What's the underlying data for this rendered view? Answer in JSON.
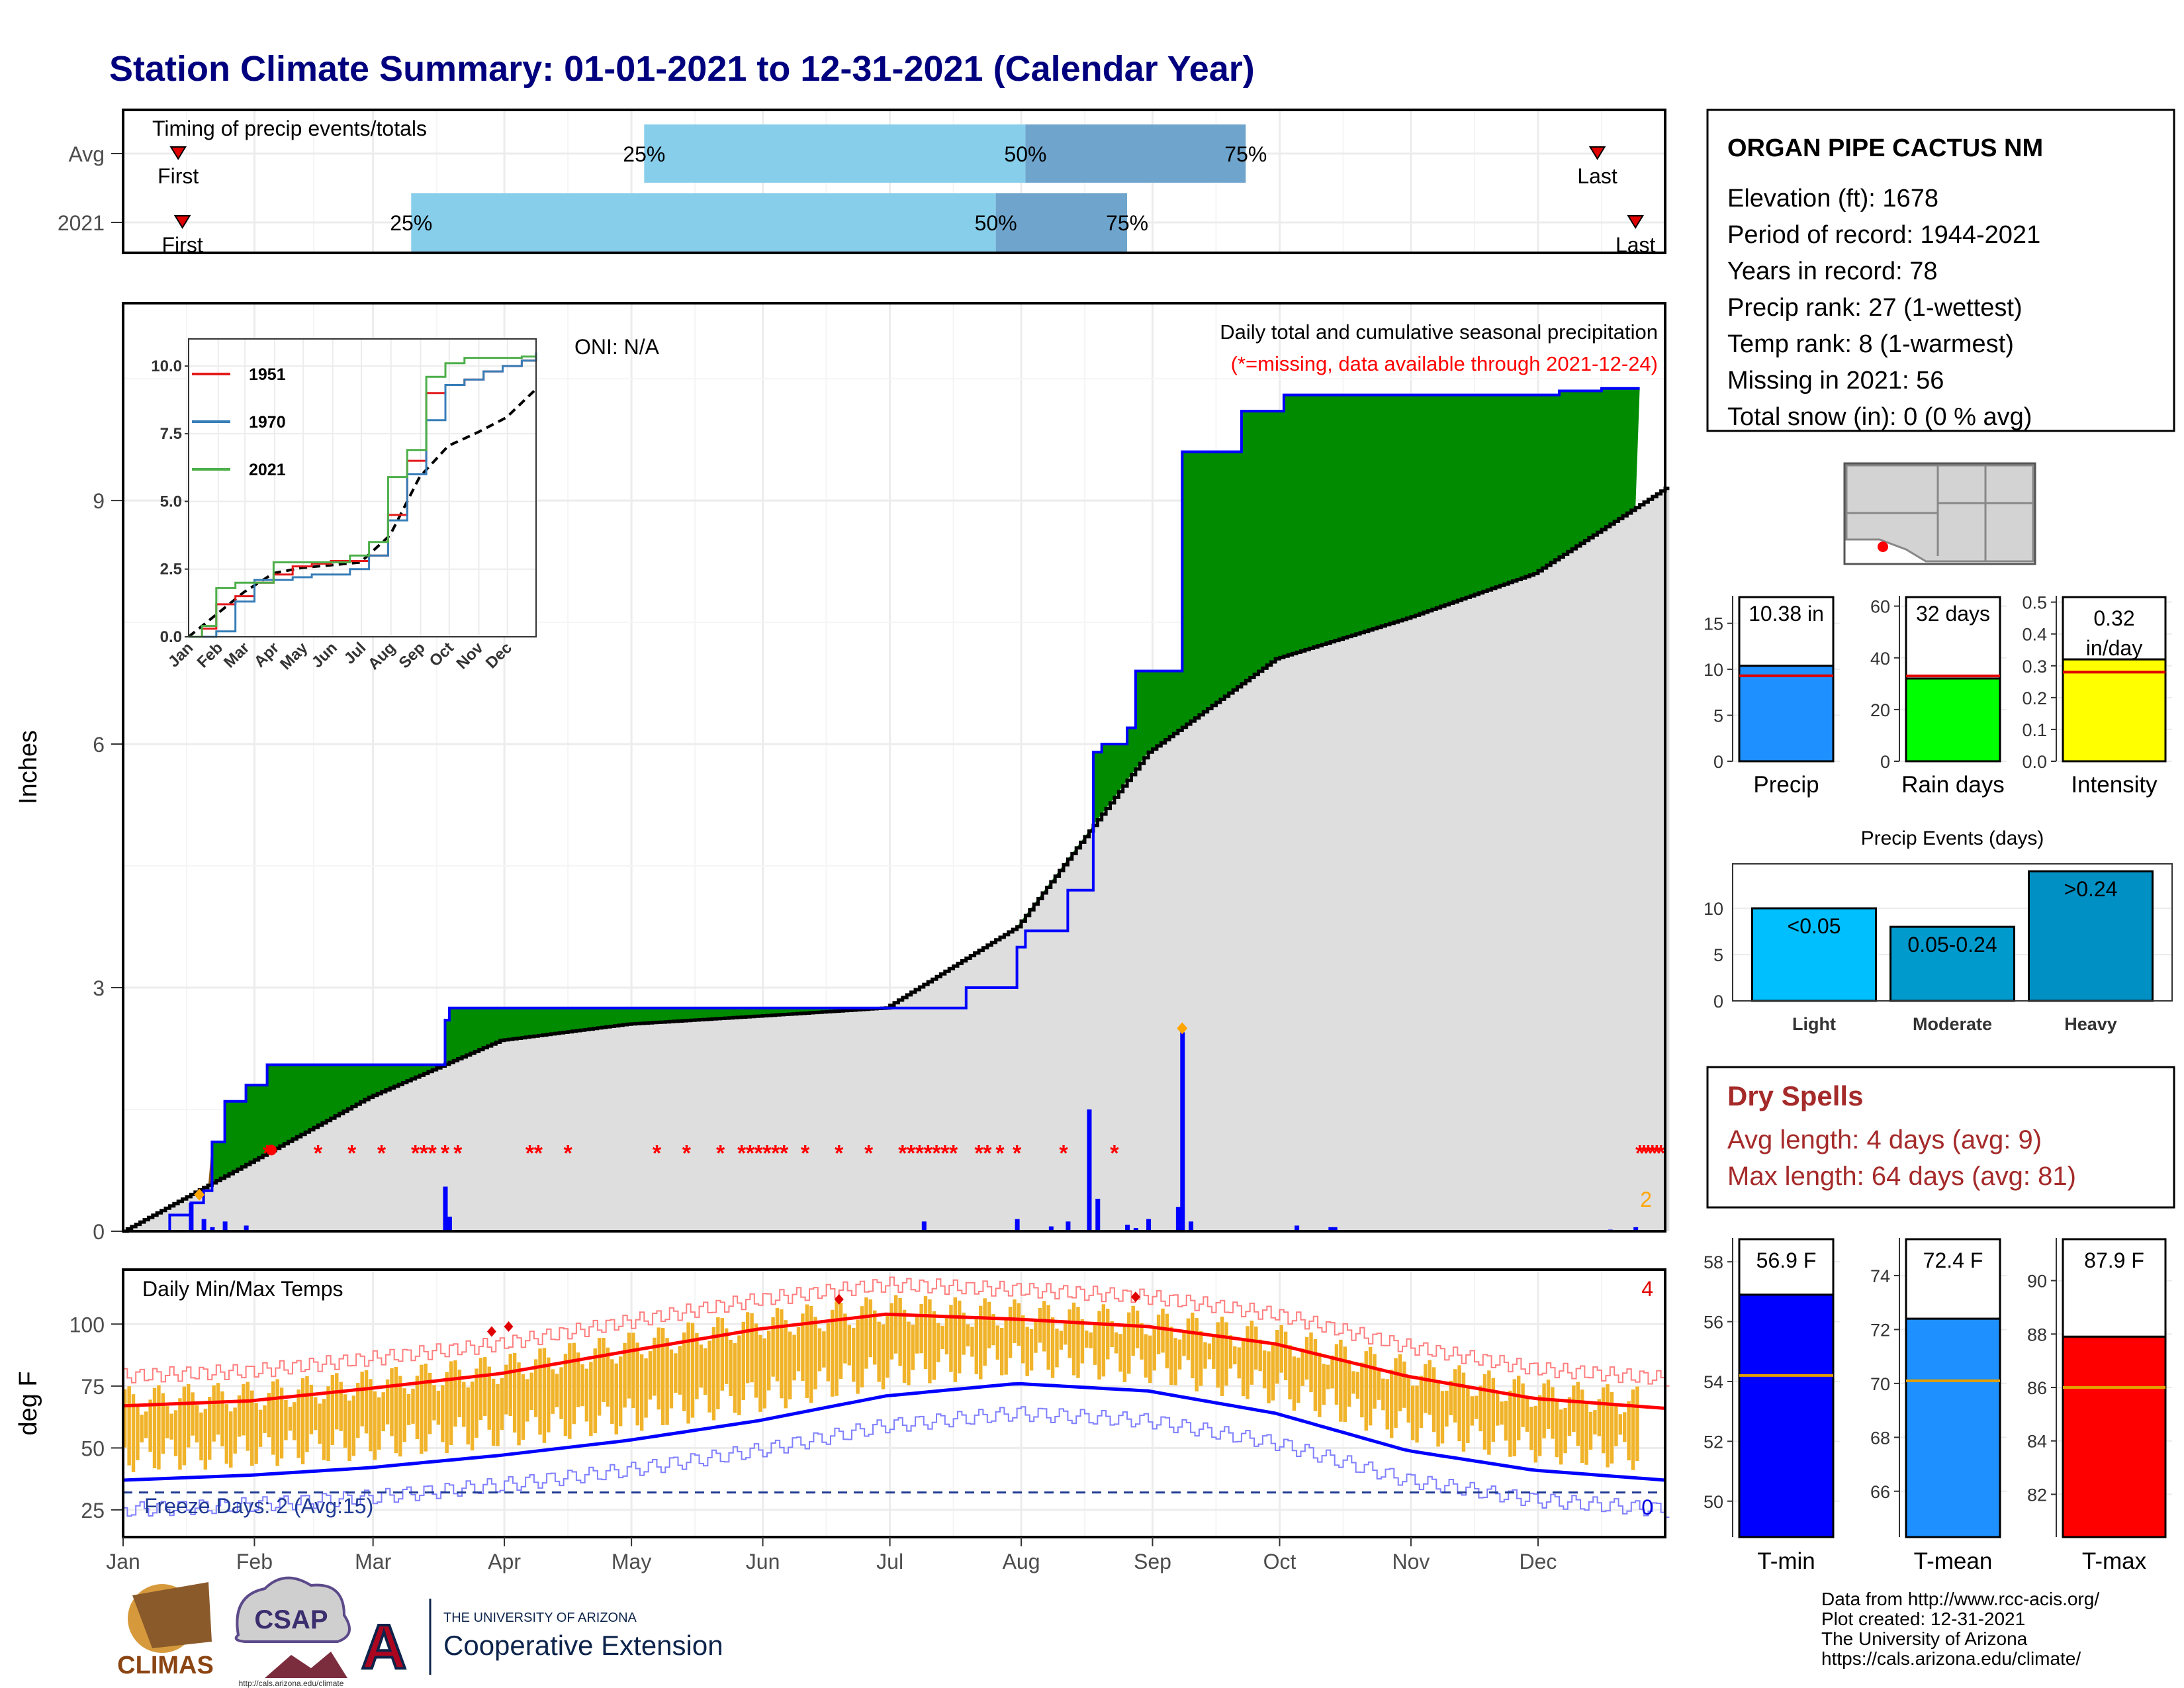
{
  "title": "Station Climate Summary: 01-01-2021 to 12-31-2021 (Calendar Year)",
  "colors": {
    "title": "#00007f",
    "precip_green": "#008b00",
    "normal_gray": "#dedede",
    "bar_blue": "#0000ff",
    "missing_red": "#ff0000",
    "timing_light": "#87ceeb",
    "timing_dark": "#6fa5cc",
    "temp_bar": "#f0b32a",
    "dry_red": "#a52a2a"
  },
  "months": [
    "Jan",
    "Feb",
    "Mar",
    "Apr",
    "May",
    "Jun",
    "Jul",
    "Aug",
    "Sep",
    "Oct",
    "Nov",
    "Dec"
  ],
  "timing": {
    "label": "Timing of precip events/totals",
    "rows": [
      {
        "name": "Avg",
        "first_label": "First",
        "last_label": "Last",
        "first_doy": 14,
        "last_doy": 349,
        "p25": 124,
        "p50": 214,
        "p75": 266,
        "p25_label": "25%",
        "p50_label": "50%",
        "p75_label": "75%"
      },
      {
        "name": "2021",
        "first_label": "First",
        "last_label": "Last",
        "first_doy": 15,
        "last_doy": 358,
        "p25": 69,
        "p50": 207,
        "p75": 238,
        "p25_label": "25%",
        "p50_label": "50%",
        "p75_label": "75%"
      }
    ]
  },
  "precip_panel": {
    "ylabel": "Inches",
    "heading": "Daily total and cumulative seasonal precipitation",
    "subheading": "(*=missing, data available through 2021-12-24)",
    "oni": "ONI: N/A",
    "missing_count_label": "2",
    "yticks": [
      "0",
      "3",
      "6",
      "9"
    ]
  },
  "inset": {
    "legend": [
      "1951",
      "1970",
      "2021"
    ],
    "legend_colors": [
      "#e41a1c",
      "#377eb8",
      "#4daf4a"
    ],
    "yticks": [
      "0.0",
      "2.5",
      "5.0",
      "7.5",
      "10.0"
    ],
    "xticks": [
      "Jan",
      "Feb",
      "Mar",
      "Apr",
      "May",
      "Jun",
      "Jul",
      "Aug",
      "Sep",
      "Oct",
      "Nov",
      "Dec"
    ]
  },
  "station": {
    "name": "ORGAN PIPE CACTUS NM",
    "lines": [
      "Elevation (ft): 1678",
      "Period of record: 1944-2021",
      "Years in record: 78",
      "Precip rank: 27 (1-wettest)",
      "Temp rank: 8 (1-warmest)",
      "Missing in 2021: 56",
      "Total snow (in): 0 (0 % avg)"
    ]
  },
  "summary_bars": [
    {
      "label": "Precip",
      "value_label": "10.38 in",
      "value": 10.38,
      "avg": 9.3,
      "ymax": 18,
      "yticks": [
        "0",
        "5",
        "10",
        "15"
      ],
      "ytick_values": [
        0,
        5,
        10,
        15
      ],
      "color": "#1e90ff"
    },
    {
      "label": "Rain days",
      "value_label": "32 days",
      "value": 32,
      "avg": 33,
      "ymax": 64,
      "yticks": [
        "0",
        "20",
        "40",
        "60"
      ],
      "ytick_values": [
        0,
        20,
        40,
        60
      ],
      "color": "#00ff00"
    },
    {
      "label": "Intensity",
      "value_label": "0.32 in/day",
      "value": 0.32,
      "avg": 0.28,
      "ymax": 0.52,
      "yticks": [
        "0.0",
        "0.1",
        "0.2",
        "0.3",
        "0.4",
        "0.5"
      ],
      "ytick_values": [
        0,
        0.1,
        0.2,
        0.3,
        0.4,
        0.5
      ],
      "color": "#ffff00"
    }
  ],
  "events": {
    "title": "Precip Events (days)",
    "categories": [
      "Light",
      "Moderate",
      "Heavy"
    ],
    "bar_labels": [
      "<0.05",
      "0.05-0.24",
      ">0.24"
    ],
    "values": [
      10,
      8,
      14
    ],
    "yticks": [
      "0",
      "5",
      "10"
    ],
    "colors": [
      "#00bfff",
      "#009acd",
      "#0090c4"
    ]
  },
  "dry_spells": {
    "title": "Dry Spells",
    "avg_line": "Avg length: 4 days (avg: 9)",
    "max_line": "Max length: 64 days (avg: 81)"
  },
  "temp_panel": {
    "label": "Daily Min/Max Temps",
    "ylabel": "deg F",
    "yticks": [
      "25",
      "50",
      "75",
      "100"
    ],
    "freeze_label": "Freeze Days: 2 (Avg:15)",
    "hot_count": "4",
    "cold_count": "0"
  },
  "temp_bars": [
    {
      "label": "T-min",
      "value_label": "56.9 F",
      "value": 56.9,
      "avg": 54.2,
      "ymin": 48.8,
      "ymax": 58.8,
      "yticks": [
        "50",
        "52",
        "54",
        "56",
        "58"
      ],
      "ytick_values": [
        50,
        52,
        54,
        56,
        58
      ],
      "color": "#0000ff"
    },
    {
      "label": "T-mean",
      "value_label": "72.4 F",
      "value": 72.4,
      "avg": 70.1,
      "ymin": 64.3,
      "ymax": 75.4,
      "yticks": [
        "66",
        "68",
        "70",
        "72",
        "74"
      ],
      "ytick_values": [
        66,
        68,
        70,
        72,
        74
      ],
      "color": "#1e90ff"
    },
    {
      "label": "T-max",
      "value_label": "87.9 F",
      "value": 87.9,
      "avg": 86.0,
      "ymin": 80.4,
      "ymax": 91.6,
      "yticks": [
        "82",
        "84",
        "86",
        "88",
        "90"
      ],
      "ytick_values": [
        82,
        84,
        86,
        88,
        90
      ],
      "color": "#ff0000"
    }
  ],
  "logos": {
    "climas": "CLIMAS",
    "csap": "CSAP",
    "csap_url": "http://cals.arizona.edu/climate",
    "ua_small": "THE UNIVERSITY OF ARIZONA",
    "ua_big": "Cooperative Extension"
  },
  "credits": [
    "Data from http://www.rcc-acis.org/",
    "Plot created: 12-31-2021",
    "The University of Arizona",
    "https://cals.arizona.edu/climate/"
  ],
  "chart_data": [
    {
      "type": "bar",
      "name": "timing",
      "title": "Timing of precip events/totals",
      "categories": [
        "Avg",
        "2021"
      ],
      "series": [
        {
          "name": "25%",
          "values": [
            124,
            69
          ]
        },
        {
          "name": "50%",
          "values": [
            214,
            207
          ]
        },
        {
          "name": "75%",
          "values": [
            266,
            238
          ]
        }
      ]
    },
    {
      "type": "area",
      "name": "precipitation",
      "title": "Daily total and cumulative seasonal precipitation",
      "xlabel": "",
      "ylabel": "Inches",
      "ylim": [
        0,
        11.4
      ],
      "series": [
        {
          "name": "cumulative",
          "x": [
            1,
            12,
            17,
            20,
            22,
            25,
            30,
            35,
            60,
            74,
            77,
            78,
            140,
            190,
            200,
            212,
            214,
            220,
            224,
            230,
            232,
            238,
            240,
            245,
            250,
            251,
            265,
            275,
            300,
            330,
            340,
            350,
            358
          ],
          "y": [
            0,
            0.2,
            0.35,
            0.5,
            1.1,
            1.6,
            1.8,
            2.05,
            2.05,
            2.05,
            2.6,
            2.75,
            2.75,
            2.75,
            3.0,
            3.5,
            3.7,
            3.7,
            4.2,
            5.9,
            6.0,
            6.2,
            6.9,
            6.9,
            6.9,
            9.6,
            10.1,
            10.3,
            10.3,
            10.3,
            10.35,
            10.38,
            10.38
          ]
        },
        {
          "name": "normal",
          "x": [
            1,
            31,
            59,
            90,
            120,
            151,
            181,
            212,
            243,
            273,
            304,
            334,
            365
          ],
          "y": [
            0,
            0.85,
            1.65,
            2.35,
            2.55,
            2.65,
            2.75,
            3.75,
            5.9,
            7.05,
            7.55,
            8.1,
            9.15
          ]
        }
      ]
    },
    {
      "type": "line",
      "name": "inset",
      "ylim": [
        0,
        11
      ],
      "series": [
        {
          "name": "1951",
          "x": [
            1,
            15,
            30,
            50,
            70,
            90,
            110,
            130,
            150,
            170,
            190,
            210,
            230,
            250,
            270,
            290,
            310,
            330,
            350,
            365
          ],
          "y": [
            0,
            0.3,
            1.2,
            1.5,
            2,
            2.3,
            2.6,
            2.7,
            2.8,
            2.8,
            3,
            4.5,
            6.5,
            9,
            9.3,
            9.5,
            9.8,
            10,
            10.2,
            10.4
          ]
        },
        {
          "name": "1970",
          "x": [
            1,
            15,
            30,
            50,
            70,
            90,
            110,
            130,
            150,
            170,
            190,
            210,
            230,
            250,
            270,
            290,
            310,
            330,
            350,
            365
          ],
          "y": [
            0,
            0,
            0.2,
            1.3,
            2.1,
            2.1,
            2.2,
            2.3,
            2.3,
            2.5,
            3,
            4.3,
            6,
            8,
            9.3,
            9.5,
            9.8,
            10,
            10.2,
            10.5
          ]
        },
        {
          "name": "2021",
          "x": [
            1,
            15,
            30,
            50,
            70,
            90,
            110,
            130,
            150,
            170,
            190,
            210,
            230,
            250,
            270,
            290,
            310,
            330,
            350,
            365
          ],
          "y": [
            0,
            0.4,
            1.8,
            2.0,
            2.0,
            2.75,
            2.75,
            2.75,
            2.75,
            3.0,
            3.5,
            5.9,
            6.9,
            9.6,
            10.1,
            10.3,
            10.3,
            10.3,
            10.35,
            10.38
          ]
        }
      ]
    },
    {
      "type": "bar",
      "name": "precip_events",
      "title": "Precip Events (days)",
      "categories": [
        "Light",
        "Moderate",
        "Heavy"
      ],
      "values": [
        10,
        8,
        14
      ]
    },
    {
      "type": "line",
      "name": "daily_temps",
      "title": "Daily Min/Max Temps",
      "ylabel": "deg F",
      "ylim": [
        14,
        122
      ],
      "series": [
        {
          "name": "normal max",
          "x": [
            1,
            31,
            59,
            90,
            120,
            151,
            181,
            212,
            243,
            273,
            304,
            334,
            365
          ],
          "y": [
            67,
            69,
            74,
            80,
            89,
            98,
            104,
            102,
            99,
            92,
            79,
            70,
            66
          ]
        },
        {
          "name": "normal min",
          "x": [
            1,
            31,
            59,
            90,
            120,
            151,
            181,
            212,
            243,
            273,
            304,
            334,
            365
          ],
          "y": [
            37,
            39,
            42,
            47,
            53,
            61,
            71,
            76,
            73,
            64,
            49,
            41,
            37
          ]
        }
      ]
    }
  ]
}
